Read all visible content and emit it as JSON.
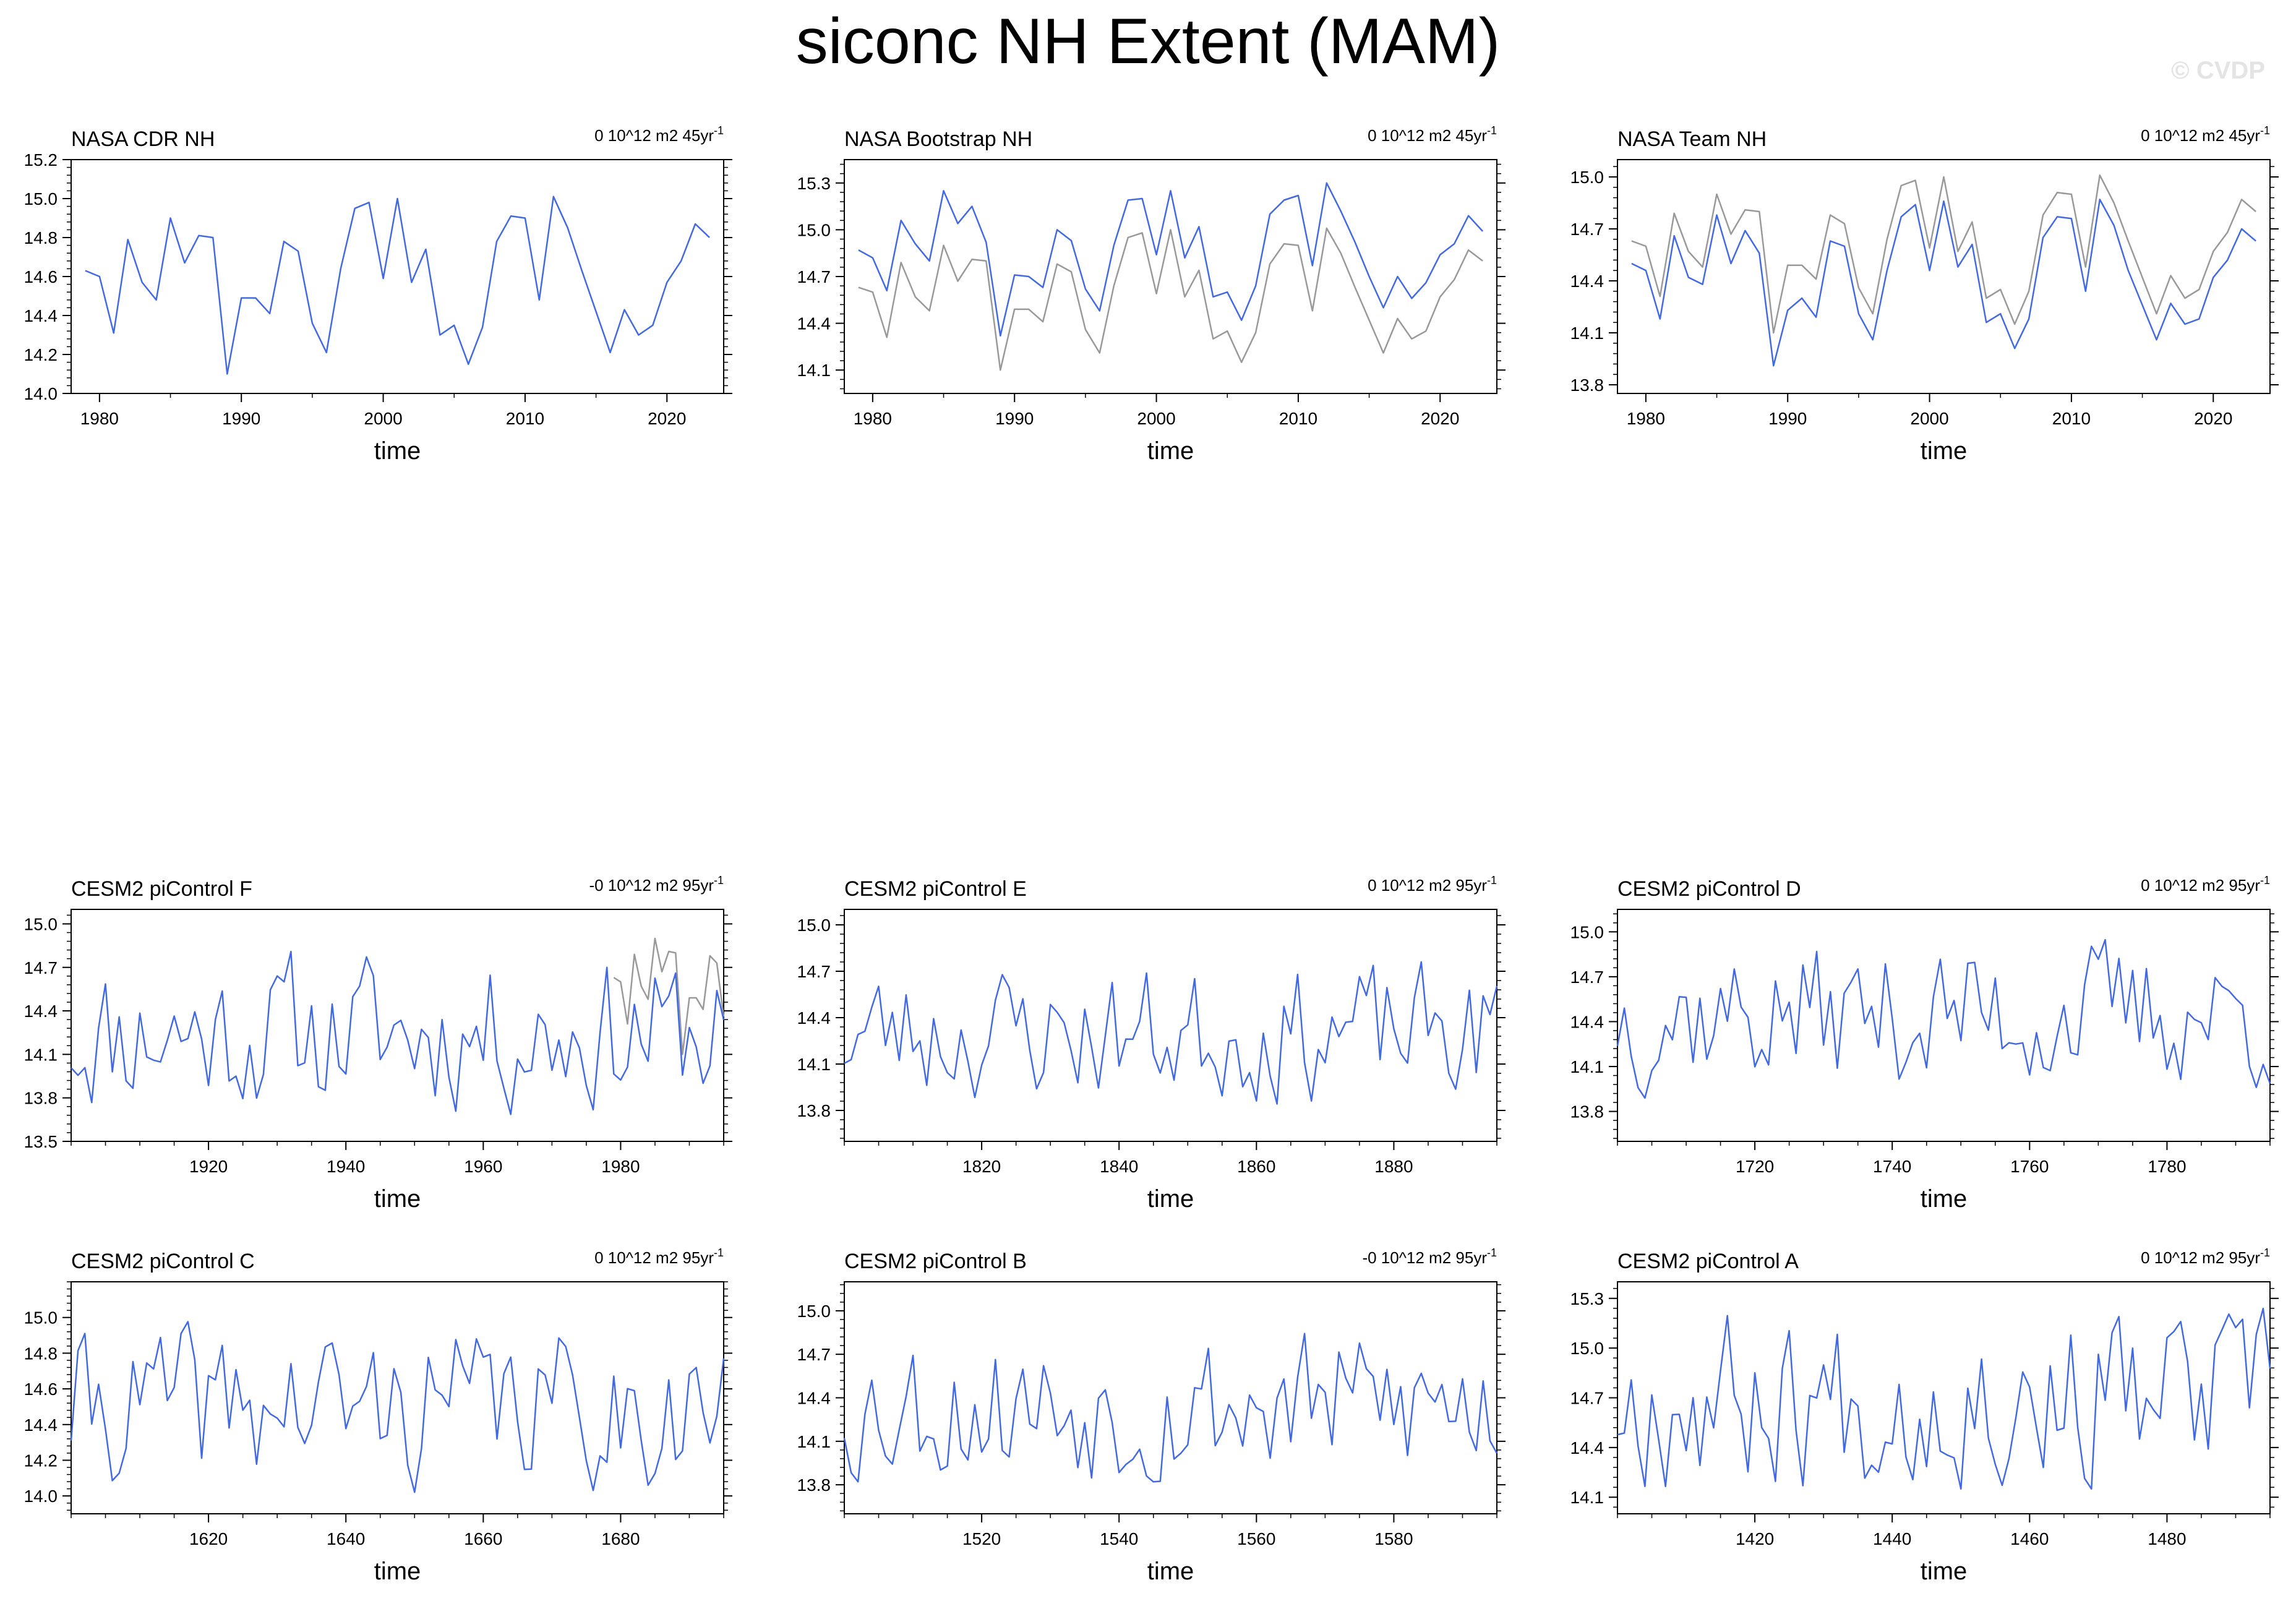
{
  "page": {
    "title": "siconc NH Extent (MAM)",
    "watermark": "© CVDP"
  },
  "chart_data": [
    {
      "type": "line",
      "title": "NASA CDR NH",
      "trend": "0 10^12 m2 45yr",
      "trend_sup": "-1",
      "xlabel": "time",
      "xlim": [
        1978,
        2024
      ],
      "ylim": [
        14.0,
        15.2
      ],
      "xticks": [
        1980,
        1990,
        2000,
        2010,
        2020
      ],
      "yticks": [
        14.0,
        14.2,
        14.4,
        14.6,
        14.8,
        15.0,
        15.2
      ],
      "ytick_labels": [
        "14.0",
        "14.2",
        "14.4",
        "14.6",
        "14.8",
        "15.0",
        "15.2"
      ],
      "x_start": 1979,
      "series": [
        {
          "color": "#4169e1",
          "values": [
            14.63,
            14.6,
            14.31,
            14.79,
            14.57,
            14.48,
            14.9,
            14.67,
            14.81,
            14.8,
            14.1,
            14.49,
            14.49,
            14.41,
            14.78,
            14.73,
            14.36,
            14.21,
            14.64,
            14.95,
            14.98,
            14.59,
            15.0,
            14.57,
            14.74,
            14.3,
            14.35,
            14.15,
            14.34,
            14.78,
            14.91,
            14.9,
            14.48,
            15.01,
            14.85,
            14.63,
            14.42,
            14.21,
            14.43,
            14.3,
            14.35,
            14.57,
            14.68,
            14.87,
            14.8
          ]
        }
      ]
    },
    {
      "type": "line",
      "title": "NASA Bootstrap NH",
      "trend": "0 10^12 m2 45yr",
      "trend_sup": "-1",
      "xlabel": "time",
      "xlim": [
        1978,
        2024
      ],
      "ylim": [
        13.95,
        15.45
      ],
      "xticks": [
        1980,
        1990,
        2000,
        2010,
        2020
      ],
      "yticks": [
        14.1,
        14.4,
        14.7,
        15.0,
        15.3
      ],
      "ytick_labels": [
        "14.1",
        "14.4",
        "14.7",
        "15.0",
        "15.3"
      ],
      "x_start": 1979,
      "series": [
        {
          "color": "#999999",
          "values": [
            14.63,
            14.6,
            14.31,
            14.79,
            14.57,
            14.48,
            14.9,
            14.67,
            14.81,
            14.8,
            14.1,
            14.49,
            14.49,
            14.41,
            14.78,
            14.73,
            14.36,
            14.21,
            14.64,
            14.95,
            14.98,
            14.59,
            15.0,
            14.57,
            14.74,
            14.3,
            14.35,
            14.15,
            14.34,
            14.78,
            14.91,
            14.9,
            14.48,
            15.01,
            14.85,
            14.63,
            14.42,
            14.21,
            14.43,
            14.3,
            14.35,
            14.57,
            14.68,
            14.87,
            14.8
          ]
        },
        {
          "color": "#4169e1",
          "values": [
            14.87,
            14.82,
            14.61,
            15.06,
            14.91,
            14.8,
            15.25,
            15.04,
            15.15,
            14.92,
            14.32,
            14.71,
            14.7,
            14.63,
            15.0,
            14.93,
            14.62,
            14.48,
            14.9,
            15.19,
            15.2,
            14.84,
            15.25,
            14.82,
            15.02,
            14.57,
            14.6,
            14.42,
            14.64,
            15.1,
            15.19,
            15.22,
            14.77,
            15.3,
            15.12,
            14.92,
            14.7,
            14.5,
            14.7,
            14.56,
            14.66,
            14.84,
            14.91,
            15.09,
            14.99
          ]
        }
      ]
    },
    {
      "type": "line",
      "title": "NASA Team NH",
      "trend": "0 10^12 m2 45yr",
      "trend_sup": "-1",
      "xlabel": "time",
      "xlim": [
        1978,
        2024
      ],
      "ylim": [
        13.75,
        15.1
      ],
      "xticks": [
        1980,
        1990,
        2000,
        2010,
        2020
      ],
      "yticks": [
        13.8,
        14.1,
        14.4,
        14.7,
        15.0
      ],
      "ytick_labels": [
        "13.8",
        "14.1",
        "14.4",
        "14.7",
        "15.0"
      ],
      "x_start": 1979,
      "series": [
        {
          "color": "#999999",
          "values": [
            14.63,
            14.6,
            14.31,
            14.79,
            14.57,
            14.48,
            14.9,
            14.67,
            14.81,
            14.8,
            14.1,
            14.49,
            14.49,
            14.41,
            14.78,
            14.73,
            14.36,
            14.21,
            14.64,
            14.95,
            14.98,
            14.59,
            15.0,
            14.57,
            14.74,
            14.3,
            14.35,
            14.15,
            14.34,
            14.78,
            14.91,
            14.9,
            14.48,
            15.01,
            14.85,
            14.63,
            14.42,
            14.21,
            14.43,
            14.3,
            14.35,
            14.57,
            14.68,
            14.87,
            14.8
          ]
        },
        {
          "color": "#4169e1",
          "values": [
            14.5,
            14.46,
            14.18,
            14.66,
            14.42,
            14.38,
            14.78,
            14.5,
            14.69,
            14.56,
            13.91,
            14.23,
            14.3,
            14.19,
            14.63,
            14.6,
            14.21,
            14.06,
            14.46,
            14.77,
            14.84,
            14.46,
            14.86,
            14.48,
            14.61,
            14.16,
            14.21,
            14.01,
            14.18,
            14.65,
            14.77,
            14.76,
            14.34,
            14.87,
            14.72,
            14.46,
            14.26,
            14.06,
            14.27,
            14.15,
            14.18,
            14.42,
            14.52,
            14.7,
            14.63
          ]
        }
      ]
    },
    {
      "type": "line",
      "title": "CESM2 piControl F",
      "trend": "-0 10^12 m2 95yr",
      "trend_sup": "-1",
      "xlabel": "time",
      "xlim": [
        1900,
        1995
      ],
      "ylim": [
        13.5,
        15.1
      ],
      "xticks": [
        1920,
        1940,
        1960,
        1980
      ],
      "yticks": [
        13.5,
        13.8,
        14.1,
        14.4,
        14.7,
        15.0
      ],
      "ytick_labels": [
        "13.5",
        "13.8",
        "14.1",
        "14.4",
        "14.7",
        "15.0"
      ],
      "x_start": 1979,
      "series": [
        {
          "color": "#999999",
          "values": [
            14.63,
            14.6,
            14.31,
            14.79,
            14.57,
            14.48,
            14.9,
            14.67,
            14.81,
            14.8,
            14.1,
            14.49,
            14.49,
            14.41,
            14.78,
            14.73,
            14.36
          ]
        }
      ]
    },
    {
      "type": "line",
      "title": "CESM2 piControl E",
      "trend": "0 10^12 m2 95yr",
      "trend_sup": "-1",
      "xlabel": "time",
      "xlim": [
        1800,
        1895
      ],
      "ylim": [
        13.6,
        15.1
      ],
      "xticks": [
        1820,
        1840,
        1860,
        1880
      ],
      "yticks": [
        13.8,
        14.1,
        14.4,
        14.7,
        15.0
      ],
      "ytick_labels": [
        "13.8",
        "14.1",
        "14.4",
        "14.7",
        "15.0"
      ],
      "series": []
    },
    {
      "type": "line",
      "title": "CESM2 piControl D",
      "trend": "0 10^12 m2 95yr",
      "trend_sup": "-1",
      "xlabel": "time",
      "xlim": [
        1700,
        1795
      ],
      "ylim": [
        13.6,
        15.15
      ],
      "xticks": [
        1720,
        1740,
        1760,
        1780
      ],
      "yticks": [
        13.8,
        14.1,
        14.4,
        14.7,
        15.0
      ],
      "ytick_labels": [
        "13.8",
        "14.1",
        "14.4",
        "14.7",
        "15.0"
      ],
      "series": []
    },
    {
      "type": "line",
      "title": "CESM2 piControl C",
      "trend": "0 10^12 m2 95yr",
      "trend_sup": "-1",
      "xlabel": "time",
      "xlim": [
        1600,
        1695
      ],
      "ylim": [
        13.9,
        15.2
      ],
      "xticks": [
        1620,
        1640,
        1660,
        1680
      ],
      "yticks": [
        14.0,
        14.2,
        14.4,
        14.6,
        14.8,
        15.0
      ],
      "ytick_labels": [
        "14.0",
        "14.2",
        "14.4",
        "14.6",
        "14.8",
        "15.0"
      ],
      "series": []
    },
    {
      "type": "line",
      "title": "CESM2 piControl B",
      "trend": "-0 10^12 m2 95yr",
      "trend_sup": "-1",
      "xlabel": "time",
      "xlim": [
        1500,
        1595
      ],
      "ylim": [
        13.6,
        15.2
      ],
      "xticks": [
        1520,
        1540,
        1560,
        1580
      ],
      "yticks": [
        13.8,
        14.1,
        14.4,
        14.7,
        15.0
      ],
      "ytick_labels": [
        "13.8",
        "14.1",
        "14.4",
        "14.7",
        "15.0"
      ],
      "series": []
    },
    {
      "type": "line",
      "title": "CESM2 piControl A",
      "trend": "0 10^12 m2 95yr",
      "trend_sup": "-1",
      "xlabel": "time",
      "xlim": [
        1400,
        1495
      ],
      "ylim": [
        14.0,
        15.4
      ],
      "xticks": [
        1420,
        1440,
        1460,
        1480
      ],
      "yticks": [
        14.1,
        14.4,
        14.7,
        15.0,
        15.3
      ],
      "ytick_labels": [
        "14.1",
        "14.4",
        "14.7",
        "15.0",
        "15.3"
      ],
      "series": []
    }
  ]
}
